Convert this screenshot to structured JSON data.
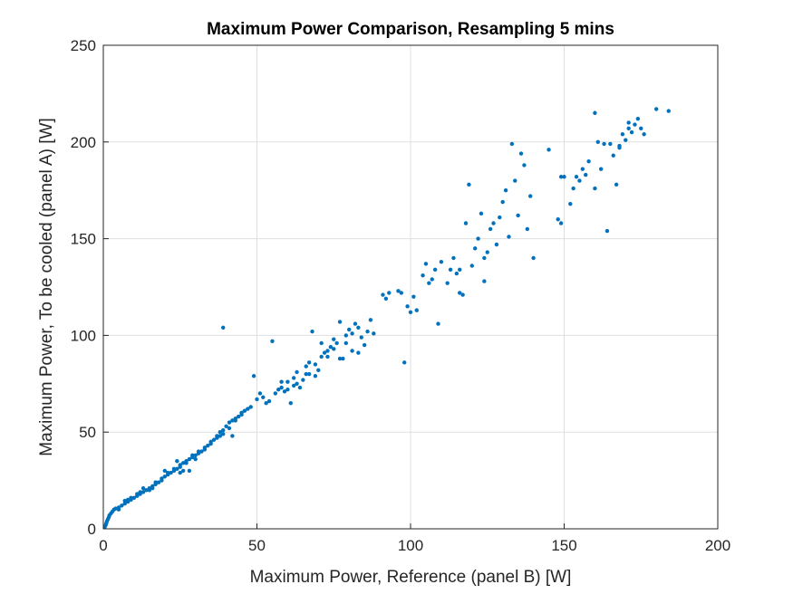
{
  "chart_data": {
    "type": "scatter",
    "title": "Maximum Power Comparison, Resampling 5 mins",
    "xlabel": "Maximum Power, Reference (panel B) [W]",
    "ylabel": "Maximum Power, To be cooled (panel A) [W]",
    "xlim": [
      0,
      200
    ],
    "ylim": [
      0,
      250
    ],
    "xticks": [
      "0",
      "50",
      "100",
      "150",
      "200"
    ],
    "yticks": [
      "0",
      "50",
      "100",
      "150",
      "200",
      "250"
    ],
    "grid": true,
    "marker_color": "#0072BD",
    "points": [
      [
        0.5,
        1
      ],
      [
        0.8,
        2
      ],
      [
        1,
        3
      ],
      [
        1.2,
        4
      ],
      [
        1.5,
        5
      ],
      [
        1.8,
        6
      ],
      [
        2,
        7
      ],
      [
        2.5,
        8
      ],
      [
        3,
        9
      ],
      [
        3.5,
        10
      ],
      [
        4,
        10.5
      ],
      [
        5,
        11
      ],
      [
        6,
        12
      ],
      [
        7,
        13
      ],
      [
        8,
        14
      ],
      [
        9,
        15
      ],
      [
        10,
        16
      ],
      [
        11,
        17
      ],
      [
        12,
        18
      ],
      [
        13,
        19
      ],
      [
        14,
        20
      ],
      [
        15,
        21
      ],
      [
        16,
        22
      ],
      [
        17,
        23
      ],
      [
        18,
        24
      ],
      [
        19,
        25
      ],
      [
        20,
        27
      ],
      [
        21,
        28
      ],
      [
        22,
        29
      ],
      [
        23,
        30
      ],
      [
        24,
        31
      ],
      [
        25,
        32
      ],
      [
        26,
        34
      ],
      [
        27,
        35
      ],
      [
        28,
        36
      ],
      [
        29,
        37
      ],
      [
        30,
        38
      ],
      [
        31,
        39
      ],
      [
        32,
        40
      ],
      [
        33,
        41
      ],
      [
        34,
        43
      ],
      [
        35,
        44
      ],
      [
        36,
        46
      ],
      [
        37,
        48
      ],
      [
        38,
        50
      ],
      [
        39,
        51
      ],
      [
        40,
        53
      ],
      [
        41,
        55
      ],
      [
        42,
        56
      ],
      [
        43,
        57
      ],
      [
        44,
        58
      ],
      [
        45,
        60
      ],
      [
        46,
        61
      ],
      [
        7,
        14.5
      ],
      [
        9,
        16
      ],
      [
        11,
        18
      ],
      [
        13,
        21
      ],
      [
        15,
        20
      ],
      [
        17,
        24
      ],
      [
        19,
        26
      ],
      [
        21,
        29
      ],
      [
        23,
        31
      ],
      [
        25,
        33
      ],
      [
        27,
        34
      ],
      [
        29,
        38
      ],
      [
        31,
        40
      ],
      [
        33,
        42
      ],
      [
        35,
        45
      ],
      [
        37,
        47
      ],
      [
        39,
        49
      ],
      [
        41,
        52
      ],
      [
        43,
        56
      ],
      [
        45,
        59
      ],
      [
        47,
        62
      ],
      [
        25,
        29
      ],
      [
        26,
        30
      ],
      [
        28,
        30
      ],
      [
        24,
        35
      ],
      [
        20,
        30
      ],
      [
        42,
        48
      ],
      [
        8,
        15
      ],
      [
        12,
        19
      ],
      [
        16,
        21
      ],
      [
        38,
        48
      ],
      [
        30,
        36
      ],
      [
        5,
        10
      ],
      [
        48,
        63
      ],
      [
        49,
        79
      ],
      [
        50,
        67
      ],
      [
        51,
        70
      ],
      [
        52,
        68
      ],
      [
        53,
        65
      ],
      [
        54,
        66
      ],
      [
        55,
        97
      ],
      [
        56,
        70
      ],
      [
        57,
        72
      ],
      [
        58,
        73
      ],
      [
        59,
        71
      ],
      [
        60,
        76
      ],
      [
        61,
        65
      ],
      [
        62,
        78
      ],
      [
        63,
        81
      ],
      [
        64,
        73
      ],
      [
        65,
        77
      ],
      [
        66,
        80
      ],
      [
        67,
        86
      ],
      [
        68,
        102
      ],
      [
        69,
        79
      ],
      [
        70,
        82
      ],
      [
        71,
        89
      ],
      [
        72,
        91
      ],
      [
        73,
        92
      ],
      [
        74,
        94
      ],
      [
        75,
        98
      ],
      [
        76,
        96
      ],
      [
        77,
        107
      ],
      [
        78,
        88
      ],
      [
        79,
        100
      ],
      [
        80,
        103
      ],
      [
        81,
        101
      ],
      [
        82,
        106
      ],
      [
        83,
        104
      ],
      [
        84,
        99
      ],
      [
        85,
        95
      ],
      [
        86,
        102
      ],
      [
        87,
        108
      ],
      [
        88,
        101
      ],
      [
        58,
        76
      ],
      [
        60,
        72
      ],
      [
        63,
        75
      ],
      [
        66,
        84
      ],
      [
        69,
        85
      ],
      [
        71,
        96
      ],
      [
        75,
        93
      ],
      [
        77,
        88
      ],
      [
        79,
        96
      ],
      [
        81,
        92
      ],
      [
        83,
        91
      ],
      [
        62,
        74
      ],
      [
        67,
        80
      ],
      [
        73,
        89
      ],
      [
        39,
        104
      ],
      [
        98,
        86
      ],
      [
        91,
        121
      ],
      [
        92,
        119
      ],
      [
        93,
        122
      ],
      [
        96,
        123
      ],
      [
        97,
        122
      ],
      [
        99,
        115
      ],
      [
        100,
        112
      ],
      [
        101,
        120
      ],
      [
        102,
        113
      ],
      [
        104,
        131
      ],
      [
        105,
        137
      ],
      [
        106,
        127
      ],
      [
        107,
        129
      ],
      [
        108,
        134
      ],
      [
        109,
        106
      ],
      [
        110,
        138
      ],
      [
        112,
        127
      ],
      [
        113,
        134
      ],
      [
        114,
        140
      ],
      [
        115,
        132
      ],
      [
        116,
        134
      ],
      [
        116,
        122
      ],
      [
        117,
        121
      ],
      [
        118,
        158
      ],
      [
        119,
        178
      ],
      [
        120,
        136
      ],
      [
        121,
        145
      ],
      [
        122,
        150
      ],
      [
        123,
        163
      ],
      [
        124,
        128
      ],
      [
        124,
        140
      ],
      [
        125,
        143
      ],
      [
        126,
        155
      ],
      [
        127,
        158
      ],
      [
        128,
        147
      ],
      [
        129,
        161
      ],
      [
        130,
        169
      ],
      [
        131,
        175
      ],
      [
        132,
        151
      ],
      [
        133,
        199
      ],
      [
        134,
        180
      ],
      [
        135,
        162
      ],
      [
        136,
        194
      ],
      [
        137,
        188
      ],
      [
        138,
        155
      ],
      [
        139,
        172
      ],
      [
        140,
        140
      ],
      [
        145,
        196
      ],
      [
        148,
        160
      ],
      [
        149,
        158
      ],
      [
        149,
        182
      ],
      [
        150,
        182
      ],
      [
        152,
        168
      ],
      [
        153,
        176
      ],
      [
        154,
        182
      ],
      [
        155,
        180
      ],
      [
        156,
        186
      ],
      [
        157,
        183
      ],
      [
        158,
        190
      ],
      [
        160,
        176
      ],
      [
        160,
        215
      ],
      [
        161,
        200
      ],
      [
        162,
        186
      ],
      [
        163,
        199
      ],
      [
        164,
        154
      ],
      [
        165,
        199
      ],
      [
        166,
        193
      ],
      [
        167,
        178
      ],
      [
        168,
        197
      ],
      [
        169,
        204
      ],
      [
        170,
        201
      ],
      [
        171,
        207
      ],
      [
        172,
        205
      ],
      [
        173,
        209
      ],
      [
        174,
        212
      ],
      [
        175,
        207
      ],
      [
        176,
        204
      ],
      [
        180,
        217
      ],
      [
        184,
        216
      ],
      [
        171,
        210
      ],
      [
        168,
        198
      ]
    ]
  }
}
